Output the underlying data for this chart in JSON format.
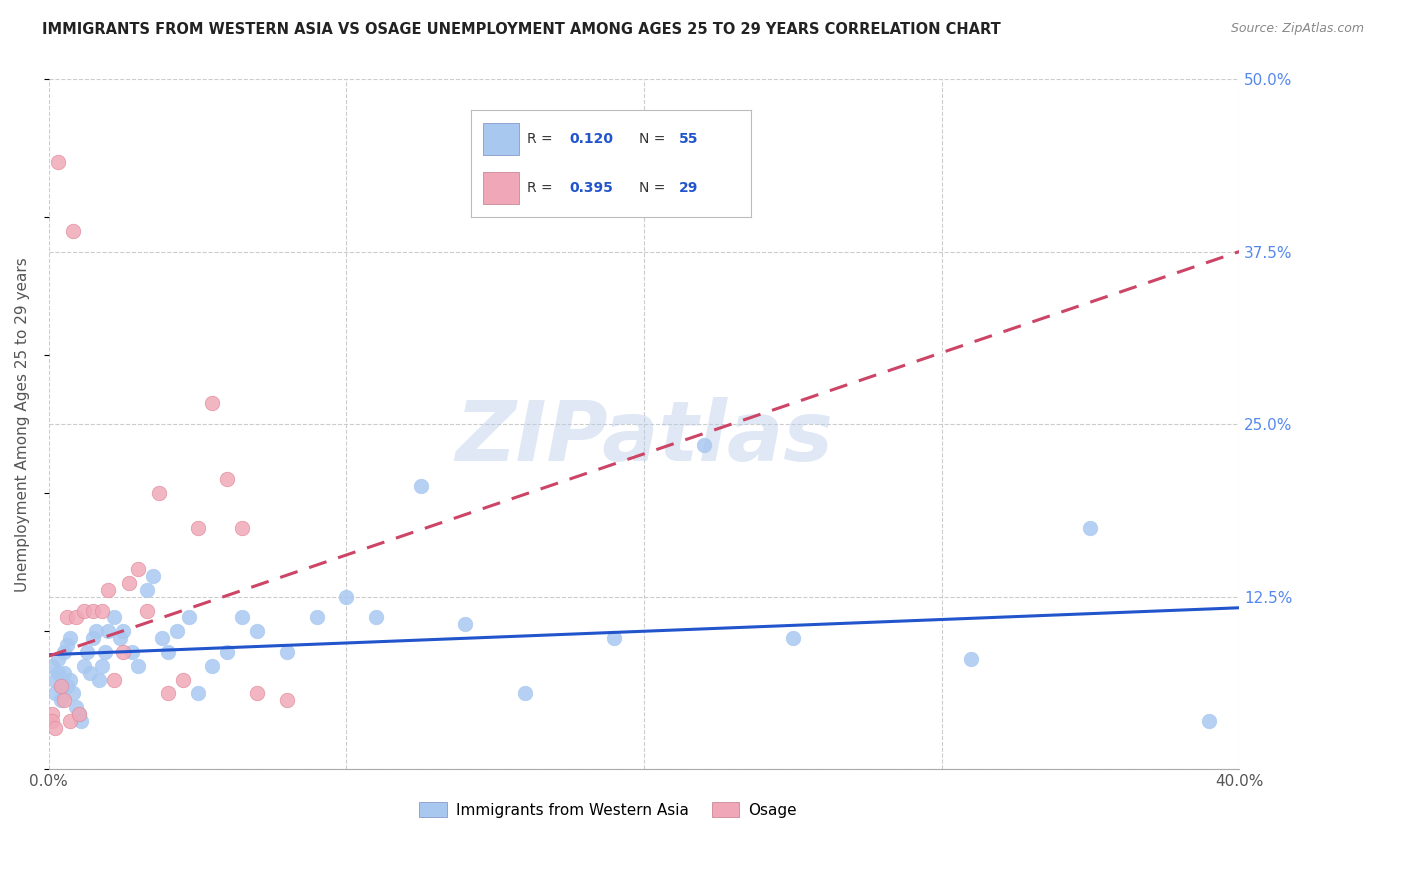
{
  "title": "IMMIGRANTS FROM WESTERN ASIA VS OSAGE UNEMPLOYMENT AMONG AGES 25 TO 29 YEARS CORRELATION CHART",
  "source": "Source: ZipAtlas.com",
  "ylabel": "Unemployment Among Ages 25 to 29 years",
  "xlim": [
    0.0,
    0.4
  ],
  "ylim": [
    0.0,
    0.5
  ],
  "xticks": [
    0.0,
    0.1,
    0.2,
    0.3,
    0.4
  ],
  "xticklabels": [
    "0.0%",
    "",
    "",
    "",
    "40.0%"
  ],
  "ytick_positions": [
    0.0,
    0.125,
    0.25,
    0.375,
    0.5
  ],
  "yticklabels": [
    "",
    "12.5%",
    "25.0%",
    "37.5%",
    "50.0%"
  ],
  "blue_color": "#a8c8f0",
  "pink_color": "#f0a8b8",
  "blue_line_color": "#2255cc",
  "pink_line_color": "#cc4466",
  "grid_color": "#cccccc",
  "watermark": "ZIPatlas",
  "legend_label1": "Immigrants from Western Asia",
  "legend_label2": "Osage",
  "blue_scatter_x": [
    0.001,
    0.002,
    0.002,
    0.003,
    0.003,
    0.004,
    0.004,
    0.005,
    0.005,
    0.006,
    0.006,
    0.007,
    0.007,
    0.008,
    0.009,
    0.01,
    0.011,
    0.012,
    0.013,
    0.014,
    0.015,
    0.016,
    0.017,
    0.018,
    0.019,
    0.02,
    0.022,
    0.024,
    0.025,
    0.028,
    0.03,
    0.033,
    0.035,
    0.038,
    0.04,
    0.043,
    0.047,
    0.05,
    0.055,
    0.06,
    0.065,
    0.07,
    0.08,
    0.09,
    0.1,
    0.11,
    0.125,
    0.14,
    0.16,
    0.19,
    0.22,
    0.25,
    0.31,
    0.35,
    0.39
  ],
  "blue_scatter_y": [
    0.075,
    0.065,
    0.055,
    0.08,
    0.07,
    0.06,
    0.05,
    0.085,
    0.07,
    0.09,
    0.06,
    0.095,
    0.065,
    0.055,
    0.045,
    0.04,
    0.035,
    0.075,
    0.085,
    0.07,
    0.095,
    0.1,
    0.065,
    0.075,
    0.085,
    0.1,
    0.11,
    0.095,
    0.1,
    0.085,
    0.075,
    0.13,
    0.14,
    0.095,
    0.085,
    0.1,
    0.11,
    0.055,
    0.075,
    0.085,
    0.11,
    0.1,
    0.085,
    0.11,
    0.125,
    0.11,
    0.205,
    0.105,
    0.055,
    0.095,
    0.235,
    0.095,
    0.08,
    0.175,
    0.035
  ],
  "pink_scatter_x": [
    0.001,
    0.001,
    0.002,
    0.003,
    0.004,
    0.005,
    0.006,
    0.007,
    0.008,
    0.009,
    0.01,
    0.012,
    0.015,
    0.018,
    0.02,
    0.022,
    0.025,
    0.027,
    0.03,
    0.033,
    0.037,
    0.04,
    0.045,
    0.05,
    0.055,
    0.06,
    0.065,
    0.07,
    0.08
  ],
  "pink_scatter_y": [
    0.04,
    0.035,
    0.03,
    0.44,
    0.06,
    0.05,
    0.11,
    0.035,
    0.39,
    0.11,
    0.04,
    0.115,
    0.115,
    0.115,
    0.13,
    0.065,
    0.085,
    0.135,
    0.145,
    0.115,
    0.2,
    0.055,
    0.065,
    0.175,
    0.265,
    0.21,
    0.175,
    0.055,
    0.05
  ],
  "blue_trend_x": [
    0.0,
    0.4
  ],
  "blue_trend_y": [
    0.083,
    0.117
  ],
  "pink_trend_x": [
    0.0,
    0.4
  ],
  "pink_trend_y": [
    0.082,
    0.375
  ]
}
